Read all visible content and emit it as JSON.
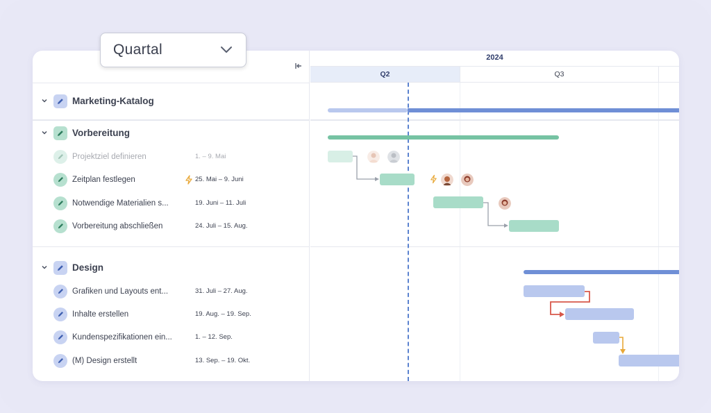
{
  "view_selector": {
    "value": "Quartal"
  },
  "timeline": {
    "year": "2024",
    "quarters": [
      {
        "label": "Q2",
        "active": true
      },
      {
        "label": "Q3",
        "active": false
      }
    ]
  },
  "groups": [
    {
      "title": "Marketing-Katalog",
      "color": "#6f8fd6",
      "tasks": []
    },
    {
      "title": "Vorbereitung",
      "color": "#66bb9b",
      "tasks": [
        {
          "title": "Projektziel definieren",
          "dates": "1. – 9. Mai",
          "faded": true
        },
        {
          "title": "Zeitplan festlegen",
          "dates": "25. Mai – 9. Juni",
          "priority_icon": "bolt-icon"
        },
        {
          "title": "Notwendige Materialien s...",
          "dates": "19. Juni – 11. Juli"
        },
        {
          "title": "Vorbereitung abschließen",
          "dates": "24. Juli – 15. Aug."
        }
      ]
    },
    {
      "title": "Design",
      "color": "#6f8fd6",
      "tasks": [
        {
          "title": "Grafiken und Layouts ent...",
          "dates": "31. Juli – 27. Aug."
        },
        {
          "title": "Inhalte erstellen",
          "dates": "19. Aug. – 19. Sep."
        },
        {
          "title": "Kundenspezifikationen ein...",
          "dates": "1. – 12. Sep."
        },
        {
          "title": "(M) Design erstellt",
          "dates": "13. Sep. – 19. Okt."
        }
      ]
    }
  ],
  "colors": {
    "blue_bar": "#6f8fd6",
    "blue_light": "#b9c8ee",
    "green_bar": "#76c3a3",
    "green_light": "#a8dcc8",
    "critical_link": "#d8584a",
    "warning_link": "#e8a838",
    "today_line": "#5b82cf"
  }
}
